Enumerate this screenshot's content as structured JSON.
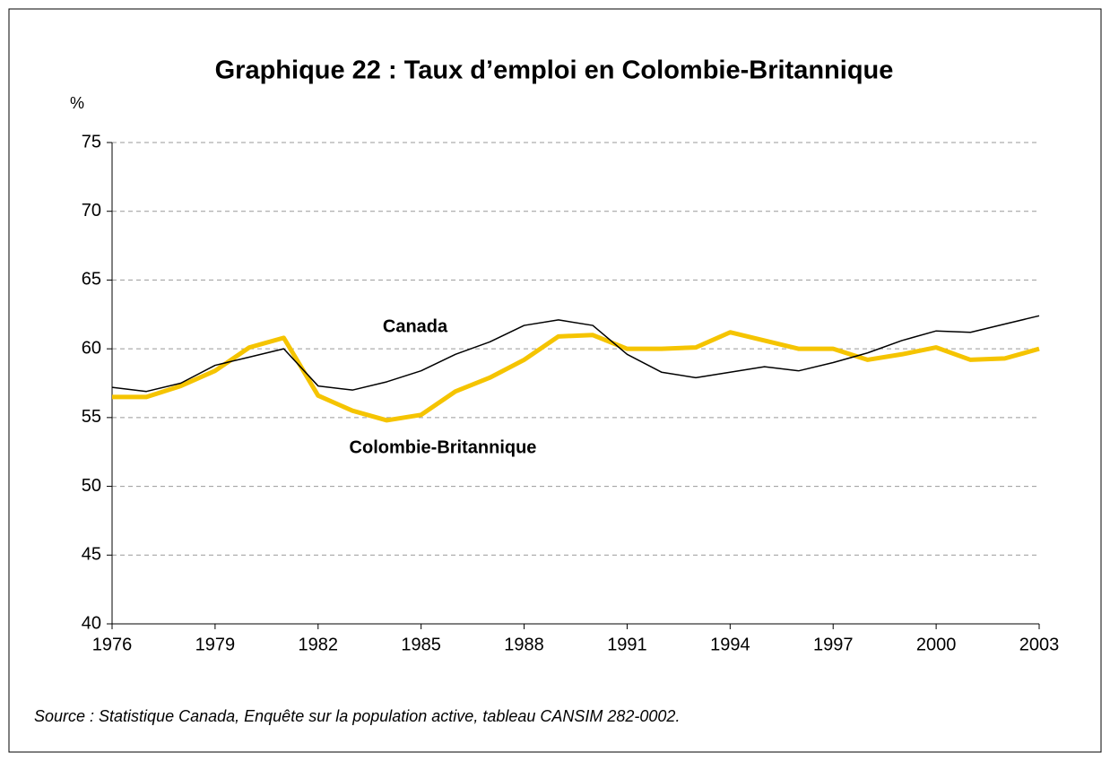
{
  "chart_data": {
    "type": "line",
    "title": "Graphique 22 : Taux d’emploi en Colombie-Britannique",
    "y_label": "%",
    "note": "Source : Statistique Canada, Enquête sur la population active, tableau CANSIM 282-0002.",
    "x": [
      1976,
      1977,
      1978,
      1979,
      1980,
      1981,
      1982,
      1983,
      1984,
      1985,
      1986,
      1987,
      1988,
      1989,
      1990,
      1991,
      1992,
      1993,
      1994,
      1995,
      1996,
      1997,
      1998,
      1999,
      2000,
      2001,
      2002,
      2003
    ],
    "xlim": [
      1976,
      2003
    ],
    "xticks": [
      1976,
      1979,
      1982,
      1985,
      1988,
      1991,
      1994,
      1997,
      2000,
      2003
    ],
    "ylim": [
      40,
      75
    ],
    "yticks": [
      40,
      45,
      50,
      55,
      60,
      65,
      70,
      75
    ],
    "grid": true,
    "series": [
      {
        "name": "Canada",
        "color": "#000000",
        "values": [
          57.2,
          56.9,
          57.5,
          58.8,
          59.4,
          60.0,
          57.3,
          57.0,
          57.6,
          58.4,
          59.6,
          60.5,
          61.7,
          62.1,
          61.7,
          59.6,
          58.3,
          57.9,
          58.3,
          58.7,
          58.4,
          59.0,
          59.7,
          60.6,
          61.3,
          61.2,
          61.8,
          62.4
        ]
      },
      {
        "name": "Colombie-Britannique",
        "color": "#f5c400",
        "values": [
          56.5,
          56.5,
          57.3,
          58.4,
          60.1,
          60.8,
          56.6,
          55.5,
          54.8,
          55.2,
          56.9,
          57.9,
          59.2,
          60.9,
          61.0,
          60.0,
          60.0,
          60.1,
          61.2,
          60.6,
          60.0,
          60.0,
          59.2,
          59.6,
          60.1,
          59.2,
          59.3,
          60.0
        ]
      }
    ]
  }
}
